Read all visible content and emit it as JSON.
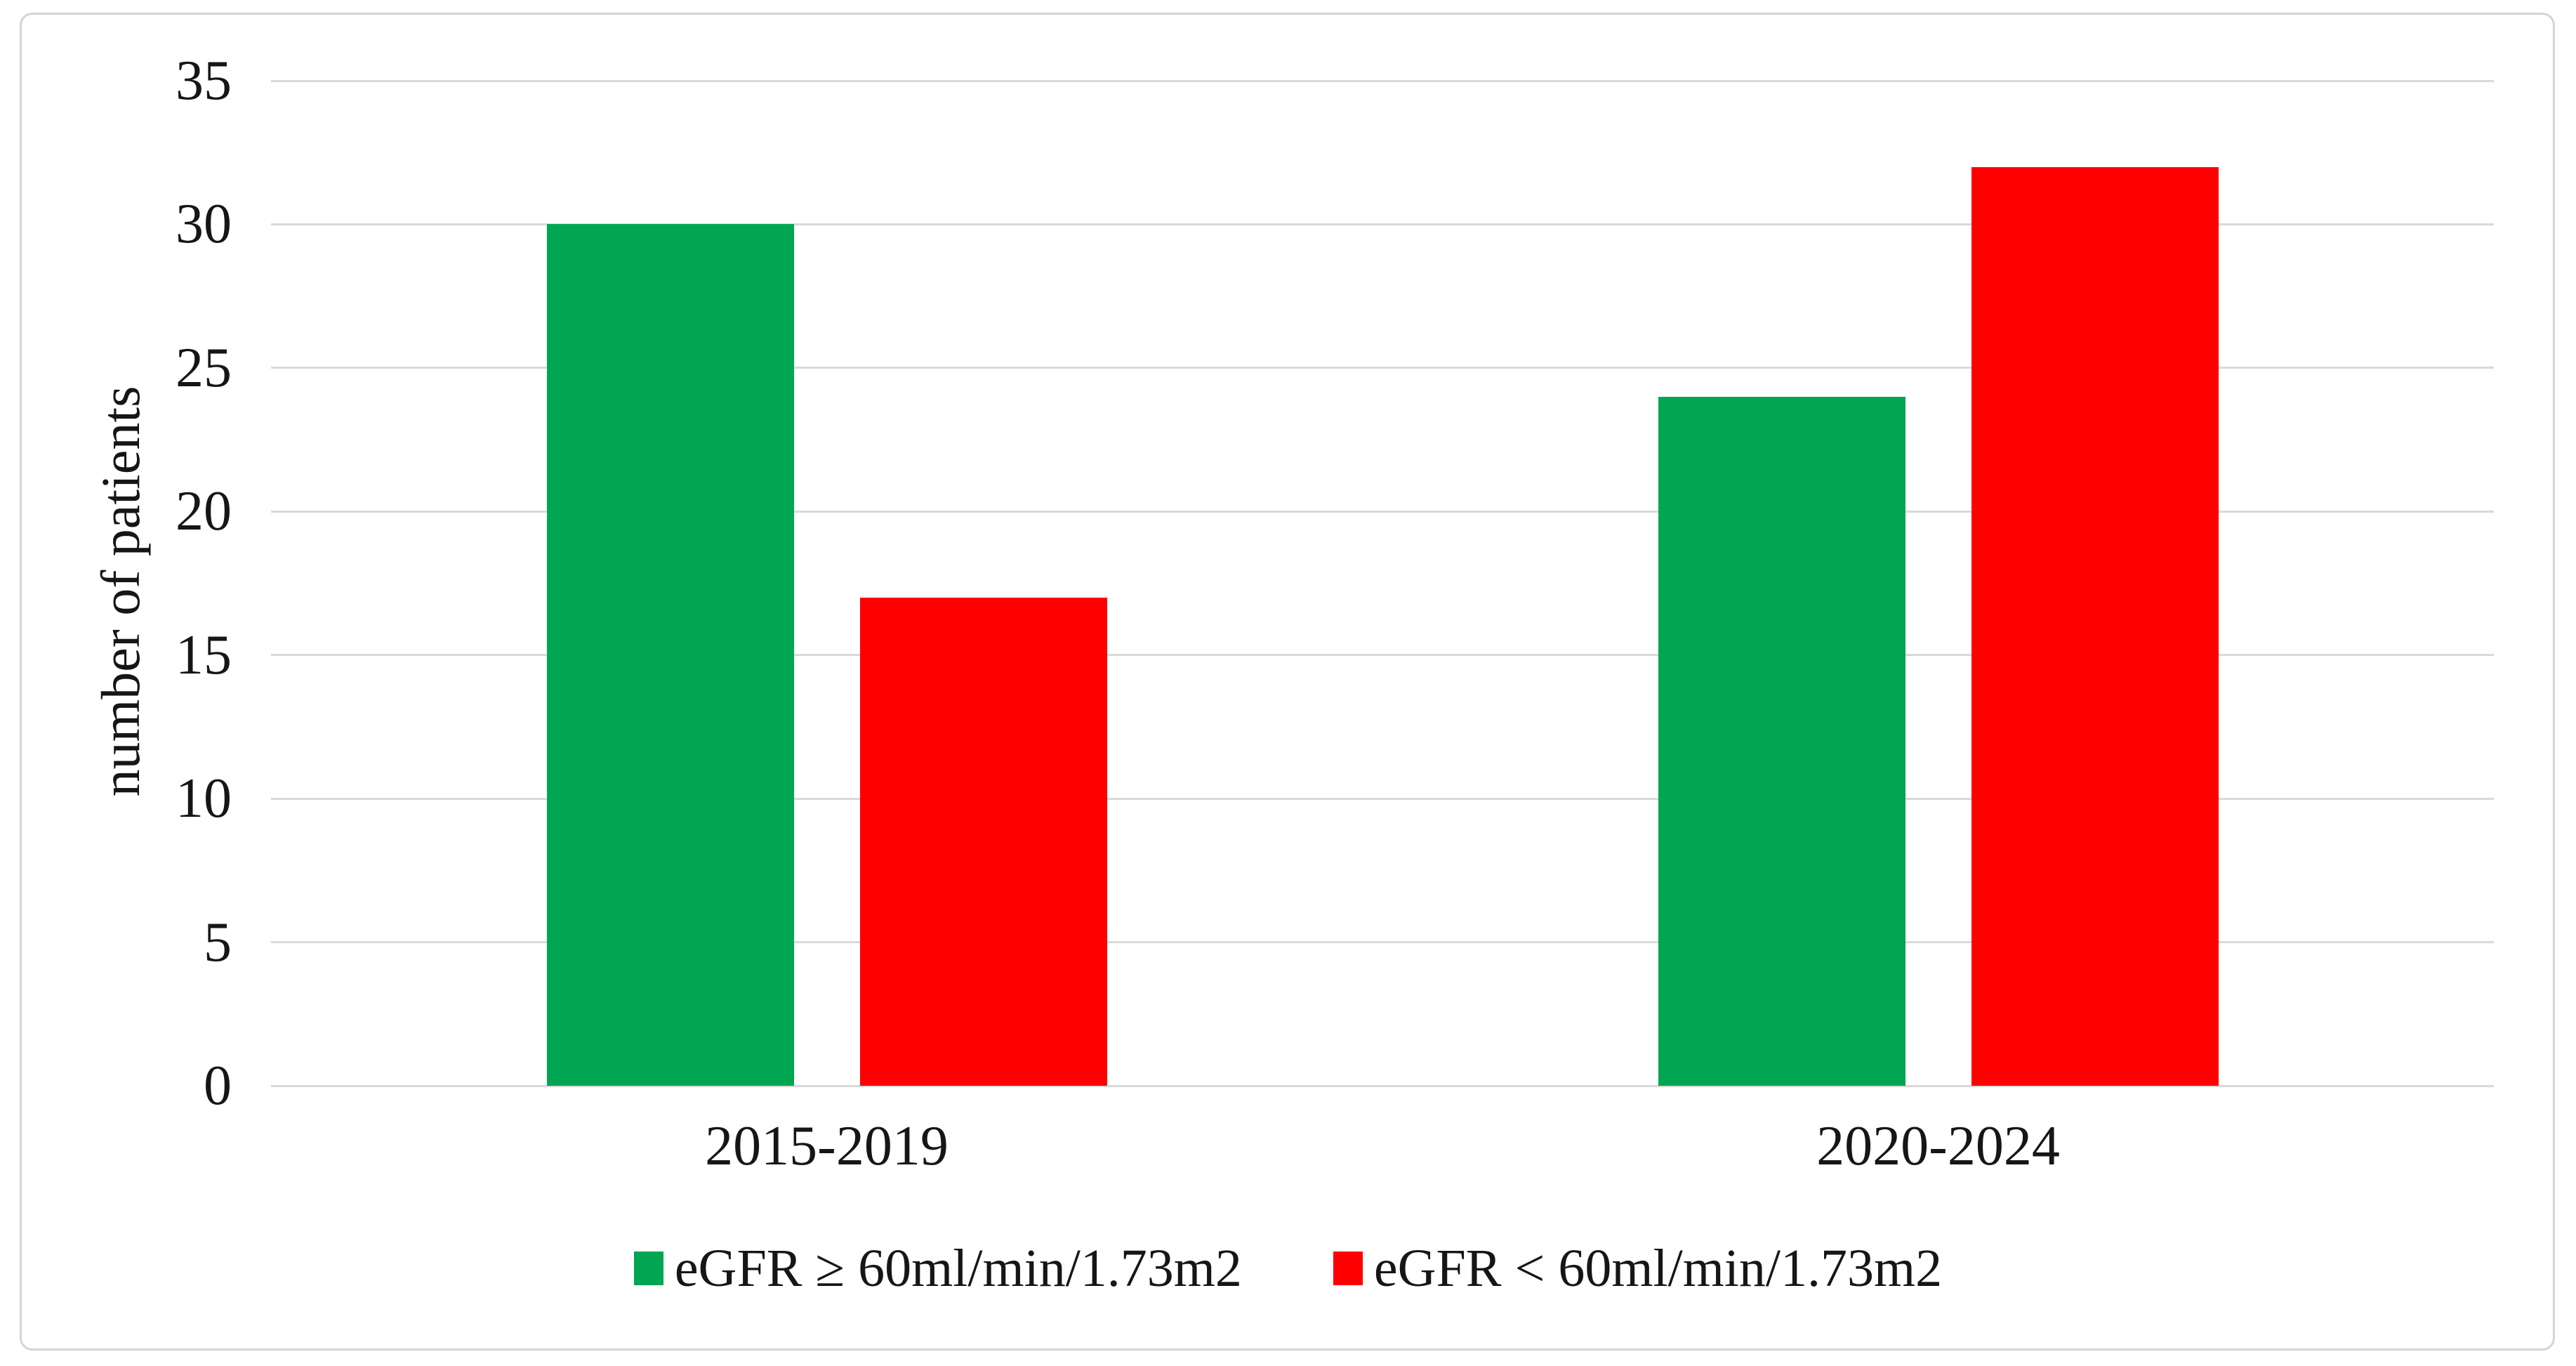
{
  "figure": {
    "background": "#ffffff",
    "border_color": "#d4d4d4"
  },
  "chart_data": {
    "type": "bar",
    "title": "",
    "xlabel": "",
    "ylabel": "number of patients",
    "categories": [
      "2015-2019",
      "2020-2024"
    ],
    "series": [
      {
        "name": "eGFR ≥ 60ml/min/1.73m2",
        "color": "#00a651",
        "values": [
          30,
          24
        ]
      },
      {
        "name": "eGFR < 60ml/min/1.73m2",
        "color": "#ff0000",
        "values": [
          17,
          32
        ]
      }
    ],
    "ylim": [
      0,
      35
    ],
    "yticks": [
      0,
      5,
      10,
      15,
      20,
      25,
      30,
      35
    ],
    "grid": "horizontal",
    "gridline_color": "#d9d9d9",
    "legend_position": "bottom"
  }
}
